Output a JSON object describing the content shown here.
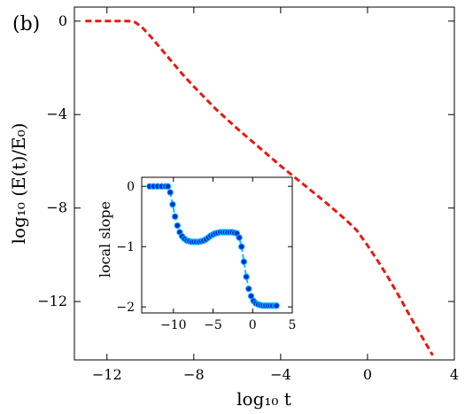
{
  "panel_label": "(b)",
  "chart_data": [
    {
      "type": "line",
      "xlabel": "log₁₀ t",
      "ylabel": "log₁₀ (E(t)/E₀)",
      "xlim": [
        -13.5,
        4
      ],
      "ylim": [
        -14.5,
        0.6
      ],
      "xticks": [
        -12,
        -8,
        -4,
        0,
        4
      ],
      "yticks": [
        0,
        -4,
        -8,
        -12
      ],
      "xtick_labels": [
        "−12",
        "−8",
        "−4",
        "0",
        "4"
      ],
      "ytick_labels": [
        "0",
        "−4",
        "−8",
        "−12"
      ],
      "grid": false,
      "series": [
        {
          "color": "#e8190e",
          "style": "dashed",
          "x": [
            -13,
            -12,
            -11,
            -10.7,
            -10.4,
            -10,
            -9.5,
            -9,
            -8.5,
            -8,
            -7,
            -6,
            -5,
            -4,
            -3,
            -2,
            -1,
            -0.5,
            0,
            0.5,
            1,
            1.5,
            2,
            2.5,
            3
          ],
          "y": [
            0,
            0,
            0,
            -0.05,
            -0.25,
            -0.65,
            -1.2,
            -1.75,
            -2.3,
            -2.8,
            -3.75,
            -4.6,
            -5.4,
            -6.2,
            -6.95,
            -7.7,
            -8.5,
            -8.95,
            -9.6,
            -10.3,
            -11.05,
            -11.85,
            -12.7,
            -13.5,
            -14.3
          ]
        }
      ]
    },
    {
      "type": "line",
      "xlabel": "",
      "ylabel": "local slope",
      "xlim": [
        -14,
        5
      ],
      "ylim": [
        -2.1,
        0.15
      ],
      "xticks": [
        -10,
        -5,
        0,
        5
      ],
      "yticks": [
        0,
        -1,
        -2
      ],
      "xtick_labels": [
        "−10",
        "−5",
        "0",
        "5"
      ],
      "ytick_labels": [
        "0",
        "−1",
        "−2"
      ],
      "grid": false,
      "series": [
        {
          "color": "#0a2bd6",
          "line_color": "#00bfff",
          "marker": "circle",
          "x": [
            -13,
            -12.5,
            -12,
            -11.5,
            -11,
            -10.7,
            -10.4,
            -10.1,
            -9.8,
            -9.5,
            -9.2,
            -8.9,
            -8.6,
            -8.3,
            -8.0,
            -7.7,
            -7.4,
            -7.1,
            -6.8,
            -6.5,
            -6.2,
            -5.9,
            -5.6,
            -5.3,
            -5.0,
            -4.7,
            -4.4,
            -4.1,
            -3.8,
            -3.5,
            -3.2,
            -2.9,
            -2.6,
            -2.3,
            -2.0,
            -1.7,
            -1.4,
            -1.1,
            -0.8,
            -0.5,
            -0.2,
            0.1,
            0.4,
            0.7,
            1.0,
            1.3,
            1.6,
            1.9,
            2.2,
            2.5,
            2.8,
            3.0
          ],
          "y": [
            0,
            0,
            0,
            0,
            0,
            0,
            -0.1,
            -0.3,
            -0.5,
            -0.65,
            -0.76,
            -0.83,
            -0.87,
            -0.9,
            -0.91,
            -0.92,
            -0.92,
            -0.92,
            -0.92,
            -0.91,
            -0.9,
            -0.88,
            -0.85,
            -0.82,
            -0.8,
            -0.78,
            -0.77,
            -0.76,
            -0.76,
            -0.76,
            -0.76,
            -0.76,
            -0.76,
            -0.77,
            -0.78,
            -0.85,
            -1.0,
            -1.25,
            -1.5,
            -1.7,
            -1.82,
            -1.9,
            -1.94,
            -1.96,
            -1.97,
            -1.98,
            -1.98,
            -1.98,
            -1.98,
            -1.98,
            -1.98,
            -1.98
          ]
        }
      ]
    }
  ]
}
